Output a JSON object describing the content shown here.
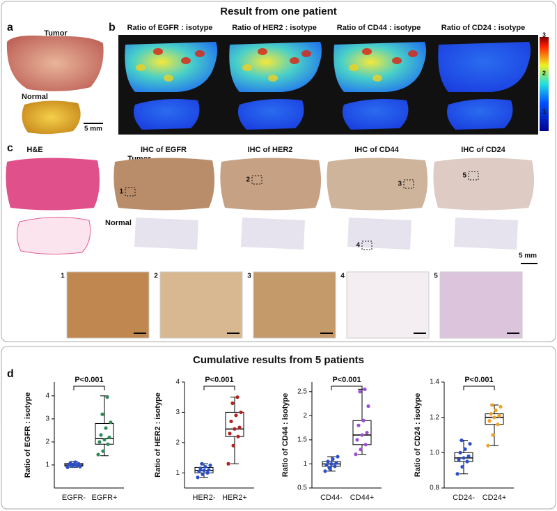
{
  "panel_top": {
    "title": "Result from one patient",
    "a": {
      "label": "a",
      "tumor": "Tumor",
      "normal": "Normal",
      "scale": "5 mm"
    },
    "b": {
      "label": "b",
      "titles": [
        "Ratio of EGFR : isotype",
        "Ratio of HER2 : isotype",
        "Ratio of CD44 : isotype",
        "Ratio of CD24 : isotype"
      ],
      "colorbar_ticks": [
        1,
        2,
        3
      ]
    },
    "c": {
      "label": "c",
      "titles": [
        "H&E",
        "IHC of EGFR",
        "IHC of HER2",
        "IHC of CD44",
        "IHC of CD24"
      ],
      "tumor": "Tumor",
      "normal": "Normal",
      "regions": [
        "1",
        "2",
        "3",
        "4",
        "5"
      ],
      "scale": "5 mm"
    }
  },
  "panel_bottom": {
    "title": "Cumulative results from 5 patients",
    "label": "d"
  },
  "chart_data": [
    {
      "type": "box",
      "ylabel": "Ratio of EGFR : isotype",
      "annotation": "P<0.001",
      "categories": [
        "EGFR-",
        "EGFR+"
      ],
      "ylim": [
        0,
        4.6
      ],
      "yticks": [
        1,
        2,
        3,
        4
      ],
      "boxes": [
        {
          "min": 0.9,
          "q1": 0.95,
          "median": 1.0,
          "q3": 1.07,
          "max": 1.15,
          "color": "#2a4fc9",
          "points": [
            0.9,
            0.95,
            0.98,
            1.0,
            1.02,
            1.05,
            1.08,
            1.12,
            0.93,
            1.0
          ]
        },
        {
          "min": 1.4,
          "q1": 1.9,
          "median": 2.15,
          "q3": 2.8,
          "max": 4.0,
          "color": "#2e8b57",
          "points": [
            1.45,
            1.6,
            1.9,
            2.0,
            2.1,
            2.2,
            2.3,
            2.6,
            2.85,
            3.2,
            3.95
          ]
        }
      ]
    },
    {
      "type": "box",
      "ylabel": "Ratio of HER2 : isotype",
      "annotation": "P<0.001",
      "categories": [
        "HER2-",
        "HER2+"
      ],
      "ylim": [
        0.5,
        4
      ],
      "yticks": [
        1,
        2,
        3,
        4
      ],
      "boxes": [
        {
          "min": 0.85,
          "q1": 1.0,
          "median": 1.08,
          "q3": 1.18,
          "max": 1.3,
          "color": "#2a4fc9",
          "points": [
            0.85,
            0.95,
            1.0,
            1.05,
            1.08,
            1.1,
            1.15,
            1.2,
            1.25,
            1.3
          ]
        },
        {
          "min": 1.3,
          "q1": 2.2,
          "median": 2.45,
          "q3": 3.0,
          "max": 3.5,
          "color": "#b22222",
          "points": [
            1.3,
            1.9,
            2.2,
            2.3,
            2.45,
            2.5,
            2.7,
            2.9,
            3.0,
            3.3,
            3.5
          ]
        }
      ]
    },
    {
      "type": "box",
      "ylabel": "Ratio of CD44 : isotype",
      "annotation": "P<0.001",
      "categories": [
        "CD44-",
        "CD44+"
      ],
      "ylim": [
        0.5,
        2.7
      ],
      "yticks": [
        0.5,
        1,
        1.5,
        2,
        2.5
      ],
      "boxes": [
        {
          "min": 0.85,
          "q1": 0.95,
          "median": 1.0,
          "q3": 1.05,
          "max": 1.15,
          "color": "#2a4fc9",
          "points": [
            0.85,
            0.9,
            0.95,
            0.98,
            1.0,
            1.02,
            1.05,
            1.1,
            1.15,
            0.92
          ]
        },
        {
          "min": 1.2,
          "q1": 1.4,
          "median": 1.6,
          "q3": 1.9,
          "max": 2.55,
          "color": "#9b4fd6",
          "points": [
            1.2,
            1.3,
            1.4,
            1.5,
            1.6,
            1.65,
            1.8,
            1.9,
            2.2,
            2.5,
            2.55
          ]
        }
      ]
    },
    {
      "type": "box",
      "ylabel": "Ratio of CD24 : isotype",
      "annotation": "P<0.001",
      "categories": [
        "CD24-",
        "CD24+"
      ],
      "ylim": [
        0.8,
        1.4
      ],
      "yticks": [
        0.8,
        {
          "value": 1,
          "label": "1.0"
        },
        1.2,
        1.4
      ],
      "boxes": [
        {
          "min": 0.88,
          "q1": 0.95,
          "median": 0.97,
          "q3": 1.0,
          "max": 1.07,
          "color": "#2a4fc9",
          "points": [
            0.88,
            0.92,
            0.95,
            0.96,
            0.97,
            0.98,
            1.0,
            1.02,
            1.05,
            1.07
          ]
        },
        {
          "min": 1.04,
          "q1": 1.16,
          "median": 1.2,
          "q3": 1.22,
          "max": 1.27,
          "color": "#f0a020",
          "points": [
            1.04,
            1.1,
            1.16,
            1.18,
            1.2,
            1.21,
            1.22,
            1.24,
            1.26,
            1.27
          ]
        }
      ]
    }
  ]
}
